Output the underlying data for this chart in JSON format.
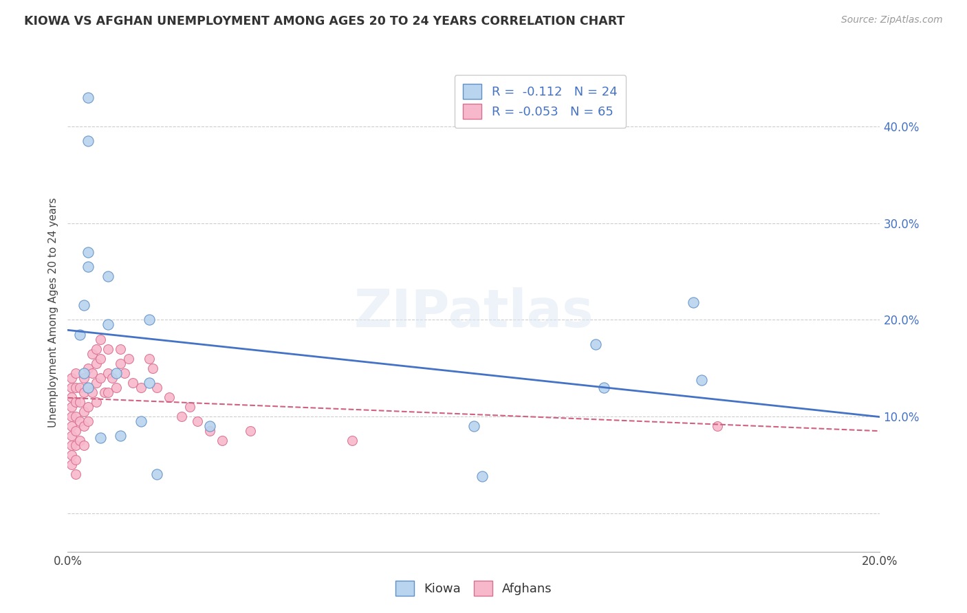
{
  "title": "KIOWA VS AFGHAN UNEMPLOYMENT AMONG AGES 20 TO 24 YEARS CORRELATION CHART",
  "source": "Source: ZipAtlas.com",
  "ylabel": "Unemployment Among Ages 20 to 24 years",
  "xlim": [
    0.0,
    0.2
  ],
  "ylim": [
    -0.04,
    0.455
  ],
  "kiowa_R": "-0.112",
  "kiowa_N": "24",
  "afghan_R": "-0.053",
  "afghan_N": "65",
  "kiowa_color": "#b8d4ee",
  "kiowa_edge": "#6090c8",
  "afghan_color": "#f8b8cc",
  "afghan_edge": "#d87090",
  "kiowa_line_color": "#4472c4",
  "afghan_line_color": "#d06080",
  "kiowa_x": [
    0.003,
    0.004,
    0.004,
    0.005,
    0.005,
    0.005,
    0.005,
    0.005,
    0.008,
    0.01,
    0.01,
    0.012,
    0.013,
    0.018,
    0.02,
    0.02,
    0.022,
    0.035,
    0.1,
    0.102,
    0.13,
    0.132,
    0.154,
    0.156
  ],
  "kiowa_y": [
    0.185,
    0.145,
    0.215,
    0.255,
    0.27,
    0.385,
    0.43,
    0.13,
    0.078,
    0.245,
    0.195,
    0.145,
    0.08,
    0.095,
    0.2,
    0.135,
    0.04,
    0.09,
    0.09,
    0.038,
    0.175,
    0.13,
    0.218,
    0.138
  ],
  "afghan_x": [
    0.001,
    0.001,
    0.001,
    0.001,
    0.001,
    0.001,
    0.001,
    0.001,
    0.001,
    0.001,
    0.002,
    0.002,
    0.002,
    0.002,
    0.002,
    0.002,
    0.002,
    0.002,
    0.003,
    0.003,
    0.003,
    0.003,
    0.004,
    0.004,
    0.004,
    0.004,
    0.004,
    0.005,
    0.005,
    0.005,
    0.005,
    0.006,
    0.006,
    0.006,
    0.007,
    0.007,
    0.007,
    0.007,
    0.008,
    0.008,
    0.008,
    0.009,
    0.01,
    0.01,
    0.01,
    0.011,
    0.012,
    0.013,
    0.013,
    0.014,
    0.015,
    0.016,
    0.018,
    0.02,
    0.021,
    0.022,
    0.025,
    0.028,
    0.03,
    0.032,
    0.035,
    0.038,
    0.045,
    0.07,
    0.16
  ],
  "afghan_y": [
    0.14,
    0.13,
    0.12,
    0.11,
    0.1,
    0.09,
    0.08,
    0.07,
    0.06,
    0.05,
    0.145,
    0.13,
    0.115,
    0.1,
    0.085,
    0.07,
    0.055,
    0.04,
    0.13,
    0.115,
    0.095,
    0.075,
    0.14,
    0.125,
    0.105,
    0.09,
    0.07,
    0.15,
    0.13,
    0.11,
    0.095,
    0.165,
    0.145,
    0.125,
    0.17,
    0.155,
    0.135,
    0.115,
    0.18,
    0.16,
    0.14,
    0.125,
    0.17,
    0.145,
    0.125,
    0.14,
    0.13,
    0.17,
    0.155,
    0.145,
    0.16,
    0.135,
    0.13,
    0.16,
    0.15,
    0.13,
    0.12,
    0.1,
    0.11,
    0.095,
    0.085,
    0.075,
    0.085,
    0.075,
    0.09
  ]
}
